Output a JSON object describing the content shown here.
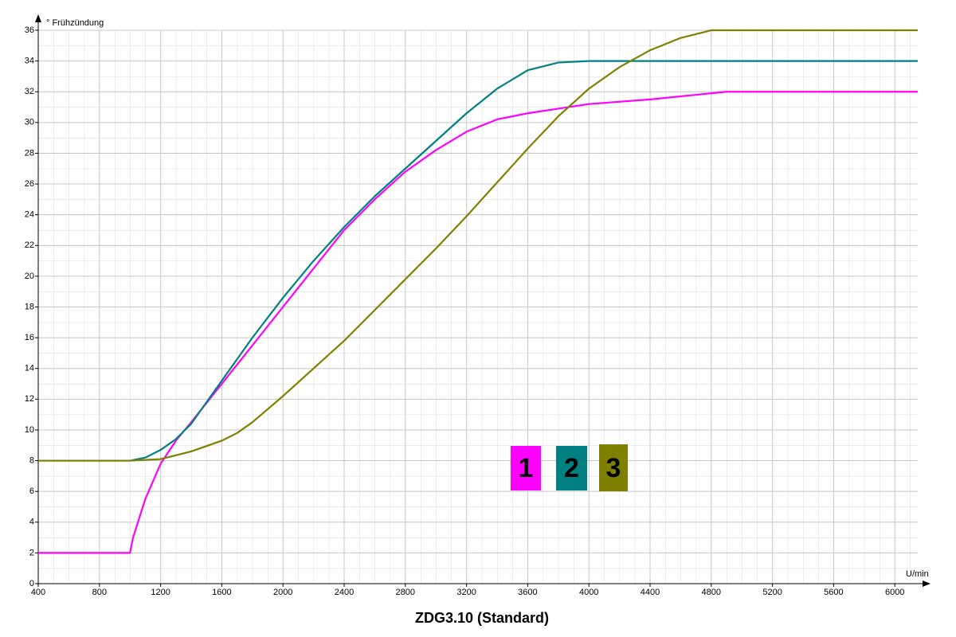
{
  "chart_data": {
    "type": "line",
    "title": "ZDG3.10 (Standard)",
    "y_label": "° Frühzündung",
    "x_label": "U/min",
    "xlim": [
      400,
      6150
    ],
    "ylim": [
      0,
      36
    ],
    "xticks": [
      400,
      800,
      1200,
      1600,
      2000,
      2400,
      2800,
      3200,
      3600,
      4000,
      4400,
      4800,
      5200,
      5600,
      6000
    ],
    "yticks": [
      0,
      2,
      4,
      6,
      8,
      10,
      12,
      14,
      16,
      18,
      20,
      22,
      24,
      26,
      28,
      30,
      32,
      34,
      36
    ],
    "grid": true,
    "series": [
      {
        "name": "1",
        "color": "#ff00ff",
        "x": [
          400,
          1000,
          1020,
          1100,
          1200,
          1300,
          1400,
          1600,
          1800,
          2000,
          2200,
          2400,
          2600,
          2800,
          3000,
          3200,
          3400,
          3600,
          3800,
          4000,
          4400,
          4800,
          4900,
          6150
        ],
        "values": [
          2,
          2,
          3,
          5.5,
          7.8,
          9.3,
          10.5,
          13,
          15.5,
          18,
          20.5,
          23,
          25,
          26.8,
          28.2,
          29.4,
          30.2,
          30.6,
          30.9,
          31.2,
          31.5,
          31.9,
          32,
          32
        ]
      },
      {
        "name": "2",
        "color": "#008080",
        "x": [
          400,
          1000,
          1100,
          1200,
          1300,
          1400,
          1600,
          1800,
          2000,
          2200,
          2400,
          2600,
          2800,
          3000,
          3200,
          3400,
          3600,
          3800,
          4000,
          6150
        ],
        "values": [
          8,
          8,
          8.2,
          8.7,
          9.4,
          10.4,
          13.2,
          16,
          18.6,
          21,
          23.2,
          25.2,
          27,
          28.8,
          30.6,
          32.2,
          33.4,
          33.9,
          34,
          34
        ]
      },
      {
        "name": "3",
        "color": "#808000",
        "x": [
          400,
          1000,
          1200,
          1400,
          1600,
          1700,
          1800,
          2000,
          2200,
          2400,
          2600,
          2800,
          3000,
          3200,
          3400,
          3600,
          3800,
          4000,
          4200,
          4400,
          4600,
          4800,
          6150
        ],
        "values": [
          8,
          8,
          8.1,
          8.6,
          9.3,
          9.8,
          10.5,
          12.2,
          14,
          15.8,
          17.8,
          19.8,
          21.8,
          23.9,
          26.1,
          28.3,
          30.4,
          32.2,
          33.6,
          34.7,
          35.5,
          36,
          36
        ]
      }
    ]
  }
}
